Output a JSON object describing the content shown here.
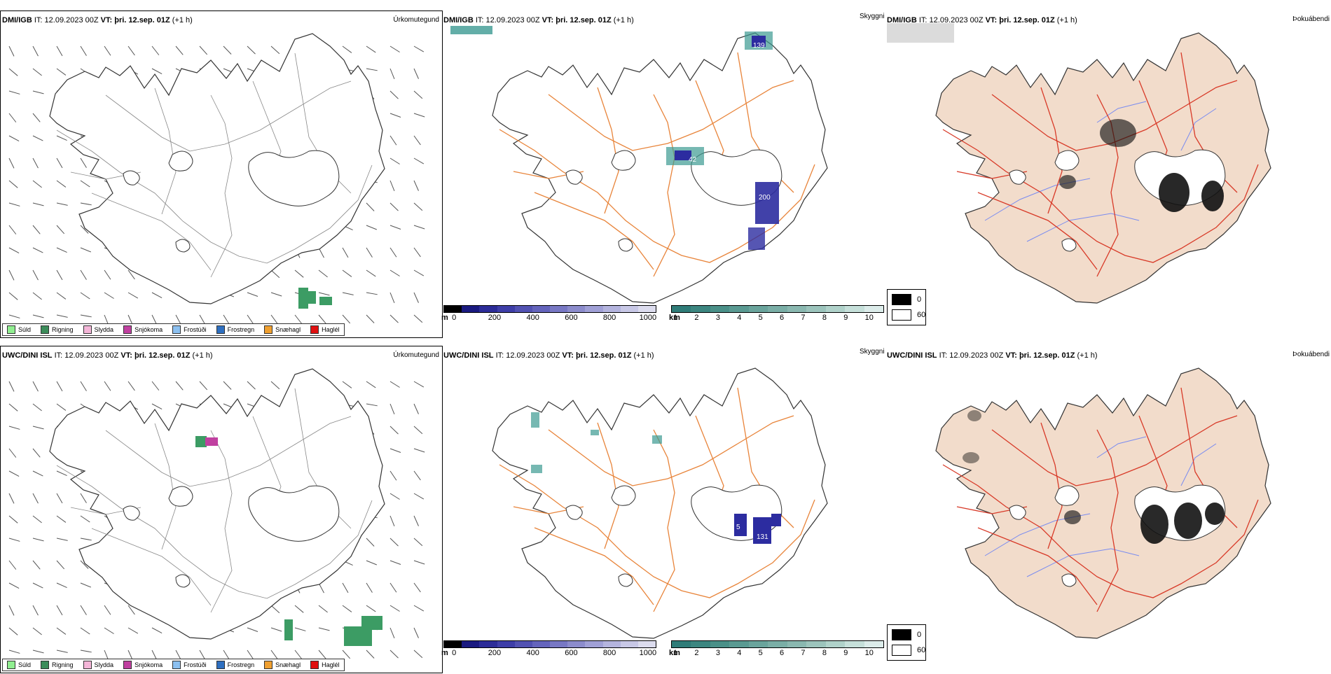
{
  "rows": [
    {
      "model": "DMI/IGB",
      "it_label": "IT:",
      "it_value": "12.09.2023 00Z",
      "vt_label": "VT:",
      "vt_value": "þri. 12.sep. 01Z",
      "lead": "(+1 h)",
      "tag_precip": "Úrkomutegund",
      "tag_cloud": "Skyggni",
      "tag_fog": "Þokuábendi"
    },
    {
      "model": "UWC/DINI ISL",
      "it_label": "IT:",
      "it_value": "12.09.2023 00Z",
      "vt_label": "VT:",
      "vt_value": "þri. 12.sep. 01Z",
      "lead": "(+1 h)",
      "tag_precip": "Úrkomutegund",
      "tag_cloud": "Skyggni",
      "tag_fog": "Þokuábendi"
    }
  ],
  "precip_legend": [
    {
      "label": "Súld",
      "color": "#90ee90"
    },
    {
      "label": "Rigning",
      "color": "#3c8c5a"
    },
    {
      "label": "Slydda",
      "color": "#f4b6d8"
    },
    {
      "label": "Snjókoma",
      "color": "#c040a0"
    },
    {
      "label": "Frostúði",
      "color": "#8cc0f0"
    },
    {
      "label": "Frostregn",
      "color": "#2e6fc0"
    },
    {
      "label": "Snæhagl",
      "color": "#f0a030"
    },
    {
      "label": "Haglél",
      "color": "#e01010"
    }
  ],
  "cloudbase_scale": {
    "unit": "m",
    "ticks": [
      "0",
      "200",
      "400",
      "600",
      "800",
      "1000"
    ],
    "colors": [
      "#000000",
      "#1a1a80",
      "#2c2c98",
      "#3e3ea8",
      "#5252b2",
      "#6464bc",
      "#7878c4",
      "#8c8ccc",
      "#a0a0d6",
      "#b4b4de",
      "#c8c8e6",
      "#dcdcee"
    ]
  },
  "visibility_scale": {
    "unit": "km",
    "ticks": [
      "1",
      "2",
      "3",
      "4",
      "5",
      "6",
      "7",
      "8",
      "9",
      "10"
    ],
    "colors": [
      "#2f7c78",
      "#3c8680",
      "#4a9088",
      "#5a9a92",
      "#6aa49c",
      "#7aaea6",
      "#8ab8b0",
      "#9cc4bc",
      "#b0d2ca",
      "#c6e0da",
      "#dcecea"
    ]
  },
  "fog_legend": [
    {
      "label": "0",
      "color": "#000000"
    },
    {
      "label": "60",
      "color": "#ffffff"
    }
  ],
  "labels_top": [
    "139",
    "42",
    "200"
  ],
  "labels_bottom": [
    "5",
    "131"
  ],
  "colors": {
    "road": "#e8843a",
    "road_red": "#d83a28",
    "land_fog": "#f2dccb",
    "rain": "#3c9c64",
    "snow": "#c040a0",
    "cloud_blue": "#2c2ca0",
    "vis_teal": "#3c9a92",
    "river": "#7a8cf0"
  }
}
